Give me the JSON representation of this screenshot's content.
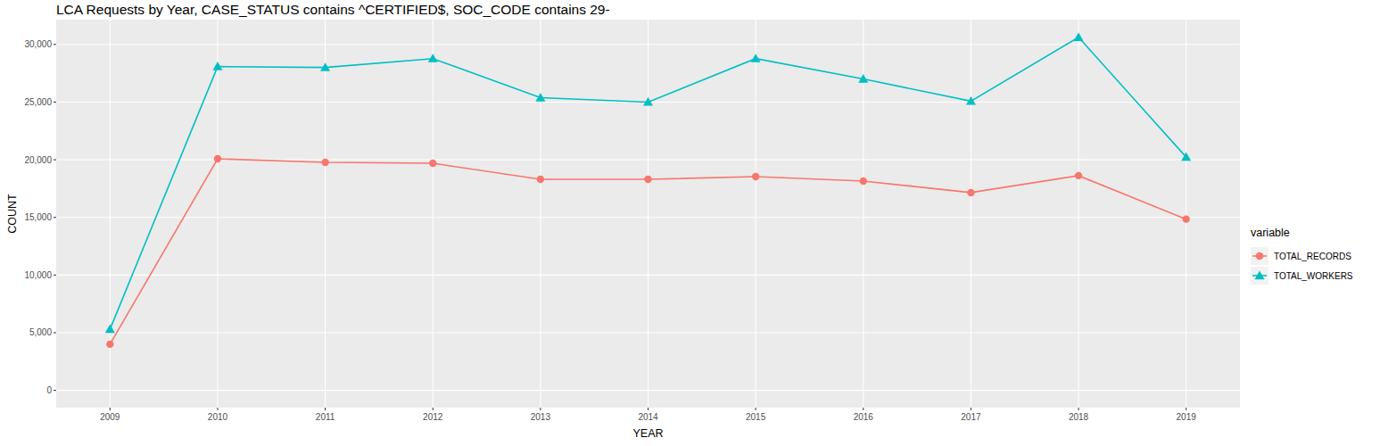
{
  "chart_data": {
    "type": "line",
    "title": "LCA Requests by Year, CASE_STATUS contains ^CERTIFIED$, SOC_CODE contains 29-",
    "x_label": "YEAR",
    "y_label": "COUNT",
    "legend_title": "variable",
    "x": [
      2009,
      2010,
      2011,
      2012,
      2013,
      2014,
      2015,
      2016,
      2017,
      2018,
      2019
    ],
    "xlim": [
      2008.5,
      2019.5
    ],
    "xticks": [
      2009,
      2010,
      2011,
      2012,
      2013,
      2014,
      2015,
      2016,
      2017,
      2018,
      2019
    ],
    "ylim": [
      -1500,
      32150
    ],
    "yticks": [
      0,
      {
        "value": 5000,
        "label": "5,000"
      },
      {
        "value": 10000,
        "label": "10,000"
      },
      {
        "value": 15000,
        "label": "15,000"
      },
      {
        "value": 20000,
        "label": "20,000"
      },
      {
        "value": 25000,
        "label": "25,000"
      },
      {
        "value": 30000,
        "label": "30,000"
      }
    ],
    "grid": true,
    "legend": "right",
    "series": [
      {
        "name": "TOTAL_RECORDS",
        "color": "#F8766D",
        "marker": "circle",
        "values": [
          4000,
          20080,
          19770,
          19690,
          18300,
          18300,
          18540,
          18150,
          17150,
          18620,
          14850
        ]
      },
      {
        "name": "TOTAL_WORKERS",
        "color": "#00BFC4",
        "marker": "triangle",
        "values": [
          5300,
          28080,
          28000,
          28770,
          25380,
          25000,
          28770,
          27000,
          25080,
          30620,
          20230
        ]
      }
    ]
  }
}
